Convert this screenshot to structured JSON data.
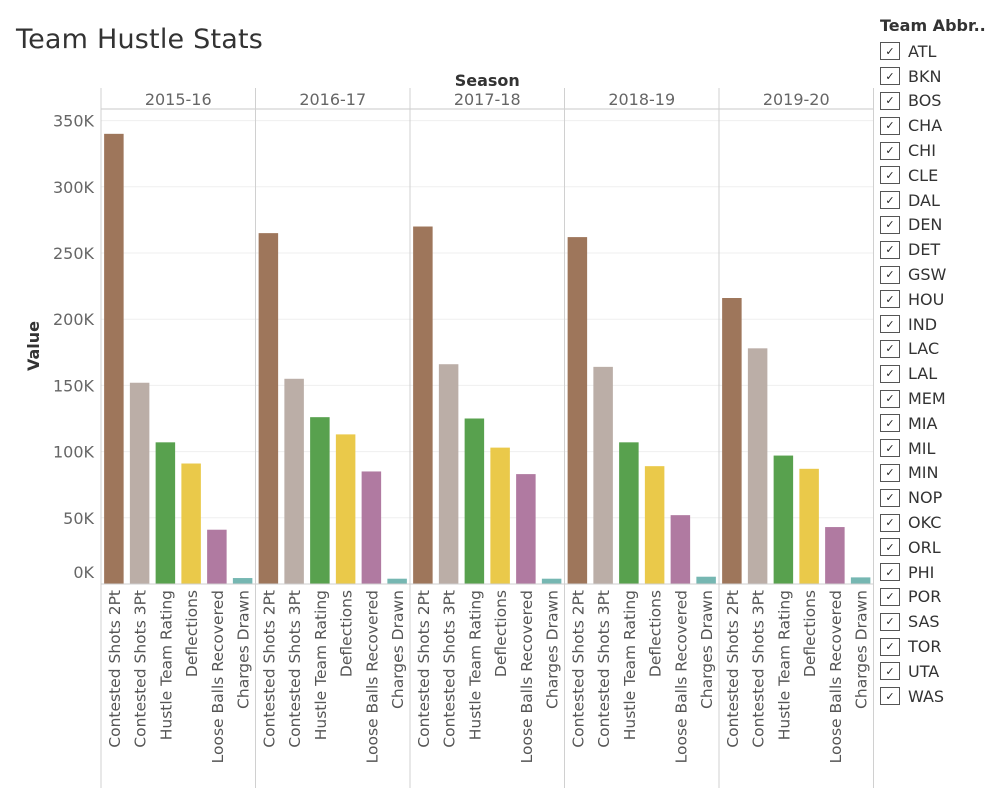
{
  "title": "Team Hustle Stats",
  "chart_data": {
    "type": "bar",
    "column_header": "Season",
    "ylabel": "Value",
    "ylim": [
      0,
      358000
    ],
    "y_ticks": [
      0,
      50000,
      100000,
      150000,
      200000,
      250000,
      300000,
      350000
    ],
    "y_tick_labels": [
      "0K",
      "50K",
      "100K",
      "150K",
      "200K",
      "250K",
      "300K",
      "350K"
    ],
    "categories": [
      "Contested Shots 2Pt",
      "Contested Shots 3Pt",
      "Hustle Team Rating",
      "Deflections",
      "Loose Balls Recovered",
      "Charges Drawn"
    ],
    "category_colors": [
      "#9e765b",
      "#bbaea7",
      "#58a14e",
      "#eac94a",
      "#b07aa1",
      "#76b7b2"
    ],
    "grid": "horizontal",
    "panels": [
      {
        "season": "2015-16",
        "values": [
          340000,
          152000,
          107000,
          91000,
          41000,
          4500
        ]
      },
      {
        "season": "2016-17",
        "values": [
          265000,
          155000,
          126000,
          113000,
          85000,
          4000
        ]
      },
      {
        "season": "2017-18",
        "values": [
          270000,
          166000,
          125000,
          103000,
          83000,
          4000
        ]
      },
      {
        "season": "2018-19",
        "values": [
          262000,
          164000,
          107000,
          89000,
          52000,
          5500
        ]
      },
      {
        "season": "2019-20",
        "values": [
          216000,
          178000,
          97000,
          87000,
          43000,
          5000
        ]
      }
    ]
  },
  "legend": {
    "title": "Team Abbr..",
    "check_glyph": "✓",
    "items": [
      "ATL",
      "BKN",
      "BOS",
      "CHA",
      "CHI",
      "CLE",
      "DAL",
      "DEN",
      "DET",
      "GSW",
      "HOU",
      "IND",
      "LAC",
      "LAL",
      "MEM",
      "MIA",
      "MIL",
      "MIN",
      "NOP",
      "OKC",
      "ORL",
      "PHI",
      "POR",
      "SAS",
      "TOR",
      "UTA",
      "WAS"
    ]
  }
}
